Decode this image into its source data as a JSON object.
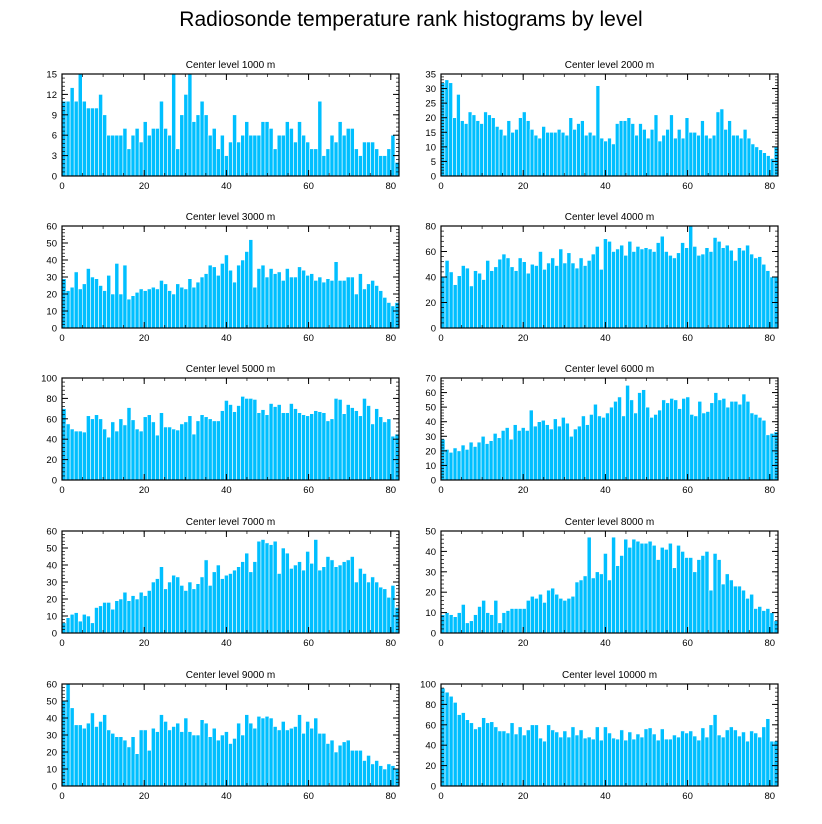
{
  "title": "Radiosonde temperature rank histograms by level",
  "colors": {
    "bar": "#00bfff",
    "bar_edge": "#ffffff",
    "axis": "#000000"
  },
  "chart_data": [
    {
      "type": "bar",
      "title": "Center level 1000 m",
      "ylim": [
        0,
        15
      ],
      "yticks": [
        0,
        3,
        6,
        9,
        12,
        15
      ],
      "xlim": [
        0,
        82
      ],
      "xticks": [
        0,
        20,
        40,
        60,
        80
      ],
      "values": [
        11,
        11,
        13,
        11,
        15,
        11,
        10,
        10,
        10,
        12,
        9,
        6,
        6,
        6,
        6,
        7,
        4,
        6,
        7,
        5,
        8,
        6,
        7,
        7,
        11,
        7,
        6,
        15,
        4,
        9,
        12,
        15,
        8,
        9,
        11,
        9,
        6,
        7,
        4,
        6,
        3,
        5,
        9,
        5,
        6,
        8,
        6,
        6,
        6,
        8,
        8,
        7,
        4,
        6,
        6,
        8,
        7,
        5,
        8,
        6,
        5,
        4,
        4,
        11,
        3,
        4,
        6,
        5,
        8,
        6,
        7,
        7,
        4,
        3,
        5,
        5,
        5,
        4,
        3,
        3,
        4,
        6,
        2
      ]
    },
    {
      "type": "bar",
      "title": "Center level 2000 m",
      "ylim": [
        0,
        35
      ],
      "yticks": [
        0,
        5,
        10,
        15,
        20,
        25,
        30,
        35
      ],
      "xlim": [
        0,
        82
      ],
      "xticks": [
        0,
        20,
        40,
        60,
        80
      ],
      "values": [
        32,
        33,
        32,
        20,
        28,
        19,
        18,
        22,
        21,
        19,
        18,
        22,
        21,
        20,
        17,
        16,
        14,
        19,
        15,
        16,
        20,
        22,
        19,
        16,
        14,
        13,
        17,
        15,
        15,
        15,
        16,
        15,
        14,
        20,
        16,
        18,
        19,
        14,
        15,
        14,
        31,
        13,
        12,
        13,
        11,
        18,
        19,
        19,
        20,
        18,
        14,
        18,
        16,
        13,
        16,
        21,
        12,
        14,
        16,
        21,
        13,
        16,
        13,
        20,
        15,
        15,
        14,
        19,
        14,
        13,
        14,
        22,
        23,
        16,
        19,
        14,
        14,
        13,
        16,
        13,
        11,
        10,
        9,
        8,
        7,
        6,
        10
      ]
    },
    {
      "type": "bar",
      "title": "Center level 3000 m",
      "ylim": [
        0,
        60
      ],
      "yticks": [
        0,
        10,
        20,
        30,
        40,
        50,
        60
      ],
      "xlim": [
        0,
        82
      ],
      "xticks": [
        0,
        20,
        40,
        60,
        80
      ],
      "values": [
        29,
        22,
        24,
        33,
        23,
        26,
        35,
        30,
        29,
        25,
        22,
        31,
        20,
        38,
        20,
        37,
        17,
        19,
        21,
        23,
        22,
        23,
        24,
        23,
        28,
        26,
        22,
        20,
        26,
        24,
        23,
        29,
        24,
        27,
        30,
        32,
        37,
        36,
        31,
        38,
        43,
        34,
        27,
        37,
        40,
        45,
        52,
        24,
        35,
        37,
        30,
        35,
        32,
        33,
        28,
        35,
        30,
        30,
        36,
        34,
        31,
        32,
        28,
        30,
        27,
        29,
        28,
        39,
        28,
        28,
        30,
        30,
        20,
        32,
        23,
        26,
        28,
        25,
        22,
        18,
        15,
        13,
        15
      ]
    },
    {
      "type": "bar",
      "title": "Center level 4000 m",
      "ylim": [
        0,
        80
      ],
      "yticks": [
        0,
        20,
        40,
        60,
        80
      ],
      "xlim": [
        0,
        82
      ],
      "xticks": [
        0,
        20,
        40,
        60,
        80
      ],
      "values": [
        40,
        53,
        44,
        34,
        41,
        49,
        47,
        33,
        45,
        43,
        38,
        53,
        45,
        48,
        54,
        58,
        55,
        48,
        45,
        55,
        52,
        43,
        50,
        49,
        60,
        46,
        51,
        55,
        49,
        62,
        51,
        59,
        51,
        47,
        55,
        49,
        53,
        58,
        64,
        46,
        70,
        68,
        60,
        62,
        65,
        57,
        68,
        60,
        64,
        62,
        63,
        62,
        60,
        67,
        72,
        60,
        57,
        55,
        59,
        67,
        63,
        80,
        64,
        57,
        58,
        63,
        60,
        71,
        68,
        63,
        65,
        61,
        53,
        63,
        61,
        65,
        58,
        55,
        56,
        50,
        45,
        40,
        40
      ]
    },
    {
      "type": "bar",
      "title": "Center level 5000 m",
      "ylim": [
        0,
        100
      ],
      "yticks": [
        0,
        20,
        40,
        60,
        80,
        100
      ],
      "xlim": [
        0,
        82
      ],
      "xticks": [
        0,
        20,
        40,
        60,
        80
      ],
      "values": [
        70,
        55,
        50,
        48,
        48,
        47,
        63,
        60,
        64,
        60,
        50,
        42,
        57,
        48,
        60,
        54,
        71,
        59,
        50,
        48,
        62,
        64,
        57,
        44,
        66,
        52,
        52,
        50,
        49,
        55,
        57,
        63,
        45,
        58,
        64,
        62,
        60,
        58,
        58,
        68,
        78,
        74,
        67,
        73,
        82,
        80,
        80,
        79,
        66,
        69,
        64,
        75,
        72,
        74,
        66,
        66,
        75,
        70,
        66,
        64,
        63,
        65,
        68,
        67,
        66,
        58,
        60,
        80,
        79,
        65,
        74,
        71,
        68,
        63,
        80,
        73,
        55,
        70,
        62,
        57,
        60,
        43,
        45
      ]
    },
    {
      "type": "bar",
      "title": "Center level 6000 m",
      "ylim": [
        0,
        70
      ],
      "yticks": [
        0,
        10,
        20,
        30,
        40,
        50,
        60,
        70
      ],
      "xlim": [
        0,
        82
      ],
      "xticks": [
        0,
        20,
        40,
        60,
        80
      ],
      "values": [
        28,
        21,
        19,
        22,
        20,
        24,
        21,
        26,
        23,
        26,
        30,
        25,
        27,
        32,
        29,
        34,
        36,
        28,
        38,
        34,
        36,
        34,
        48,
        37,
        40,
        41,
        38,
        35,
        42,
        37,
        43,
        39,
        30,
        35,
        37,
        44,
        38,
        45,
        52,
        44,
        43,
        46,
        50,
        54,
        57,
        44,
        65,
        55,
        46,
        60,
        62,
        50,
        43,
        45,
        48,
        55,
        53,
        56,
        55,
        49,
        56,
        57,
        45,
        44,
        54,
        46,
        47,
        53,
        60,
        55,
        56,
        50,
        54,
        54,
        52,
        59,
        54,
        46,
        45,
        43,
        41,
        31,
        32,
        33
      ]
    },
    {
      "type": "bar",
      "title": "Center level 7000 m",
      "ylim": [
        0,
        60
      ],
      "yticks": [
        0,
        10,
        20,
        30,
        40,
        50,
        60
      ],
      "xlim": [
        0,
        82
      ],
      "xticks": [
        0,
        20,
        40,
        60,
        80
      ],
      "values": [
        6,
        9,
        11,
        12,
        7,
        11,
        10,
        6,
        15,
        16,
        18,
        18,
        14,
        19,
        20,
        24,
        19,
        22,
        20,
        24,
        22,
        25,
        30,
        32,
        39,
        26,
        30,
        34,
        33,
        28,
        25,
        30,
        26,
        29,
        33,
        43,
        28,
        36,
        40,
        32,
        34,
        35,
        37,
        39,
        42,
        47,
        36,
        42,
        54,
        55,
        53,
        52,
        54,
        35,
        50,
        47,
        38,
        40,
        42,
        37,
        48,
        41,
        55,
        37,
        39,
        45,
        43,
        39,
        40,
        42,
        43,
        45,
        30,
        38,
        35,
        30,
        33,
        30,
        27,
        26,
        21,
        28,
        15
      ]
    },
    {
      "type": "bar",
      "title": "Center level 8000 m",
      "ylim": [
        0,
        50
      ],
      "yticks": [
        0,
        10,
        20,
        30,
        40,
        50
      ],
      "xlim": [
        0,
        82
      ],
      "xticks": [
        0,
        20,
        40,
        60,
        80
      ],
      "values": [
        9,
        10,
        9,
        8,
        10,
        14,
        5,
        6,
        9,
        13,
        16,
        10,
        9,
        16,
        5,
        10,
        11,
        12,
        12,
        12,
        12,
        16,
        18,
        17,
        19,
        15,
        21,
        22,
        19,
        17,
        16,
        17,
        18,
        25,
        26,
        28,
        47,
        27,
        30,
        29,
        39,
        26,
        47,
        33,
        38,
        46,
        42,
        46,
        45,
        44,
        44,
        45,
        43,
        36,
        42,
        41,
        44,
        32,
        43,
        40,
        37,
        37,
        30,
        36,
        38,
        40,
        21,
        39,
        36,
        24,
        29,
        26,
        23,
        23,
        21,
        17,
        19,
        12,
        13,
        11,
        12,
        10,
        6
      ]
    },
    {
      "type": "bar",
      "title": "Center level 9000 m",
      "ylim": [
        0,
        60
      ],
      "yticks": [
        0,
        10,
        20,
        30,
        40,
        50,
        60
      ],
      "xlim": [
        0,
        82
      ],
      "xticks": [
        0,
        20,
        40,
        60,
        80
      ],
      "values": [
        50,
        61,
        46,
        36,
        36,
        34,
        37,
        43,
        35,
        38,
        42,
        33,
        31,
        29,
        29,
        27,
        23,
        29,
        19,
        33,
        33,
        21,
        34,
        32,
        42,
        38,
        33,
        35,
        37,
        32,
        40,
        32,
        30,
        30,
        39,
        37,
        29,
        34,
        27,
        30,
        32,
        25,
        28,
        37,
        30,
        42,
        37,
        34,
        41,
        40,
        41,
        40,
        35,
        33,
        38,
        33,
        34,
        35,
        42,
        31,
        38,
        34,
        40,
        31,
        31,
        25,
        27,
        20,
        24,
        26,
        27,
        21,
        21,
        21,
        15,
        18,
        13,
        15,
        12,
        10,
        13,
        12,
        10
      ]
    },
    {
      "type": "bar",
      "title": "Center level 10000 m",
      "ylim": [
        0,
        100
      ],
      "yticks": [
        0,
        20,
        40,
        60,
        80,
        100
      ],
      "xlim": [
        0,
        82
      ],
      "xticks": [
        0,
        20,
        40,
        60,
        80
      ],
      "values": [
        96,
        92,
        88,
        82,
        70,
        72,
        65,
        62,
        56,
        58,
        67,
        62,
        63,
        58,
        54,
        54,
        52,
        62,
        51,
        58,
        50,
        55,
        60,
        60,
        47,
        44,
        60,
        55,
        53,
        48,
        54,
        48,
        58,
        50,
        55,
        47,
        48,
        46,
        58,
        45,
        58,
        52,
        47,
        46,
        55,
        45,
        53,
        46,
        51,
        48,
        56,
        57,
        51,
        45,
        56,
        46,
        46,
        50,
        48,
        54,
        52,
        54,
        49,
        45,
        57,
        48,
        60,
        70,
        50,
        48,
        55,
        58,
        55,
        49,
        53,
        44,
        54,
        52,
        48,
        58,
        66,
        44,
        44
      ]
    }
  ]
}
